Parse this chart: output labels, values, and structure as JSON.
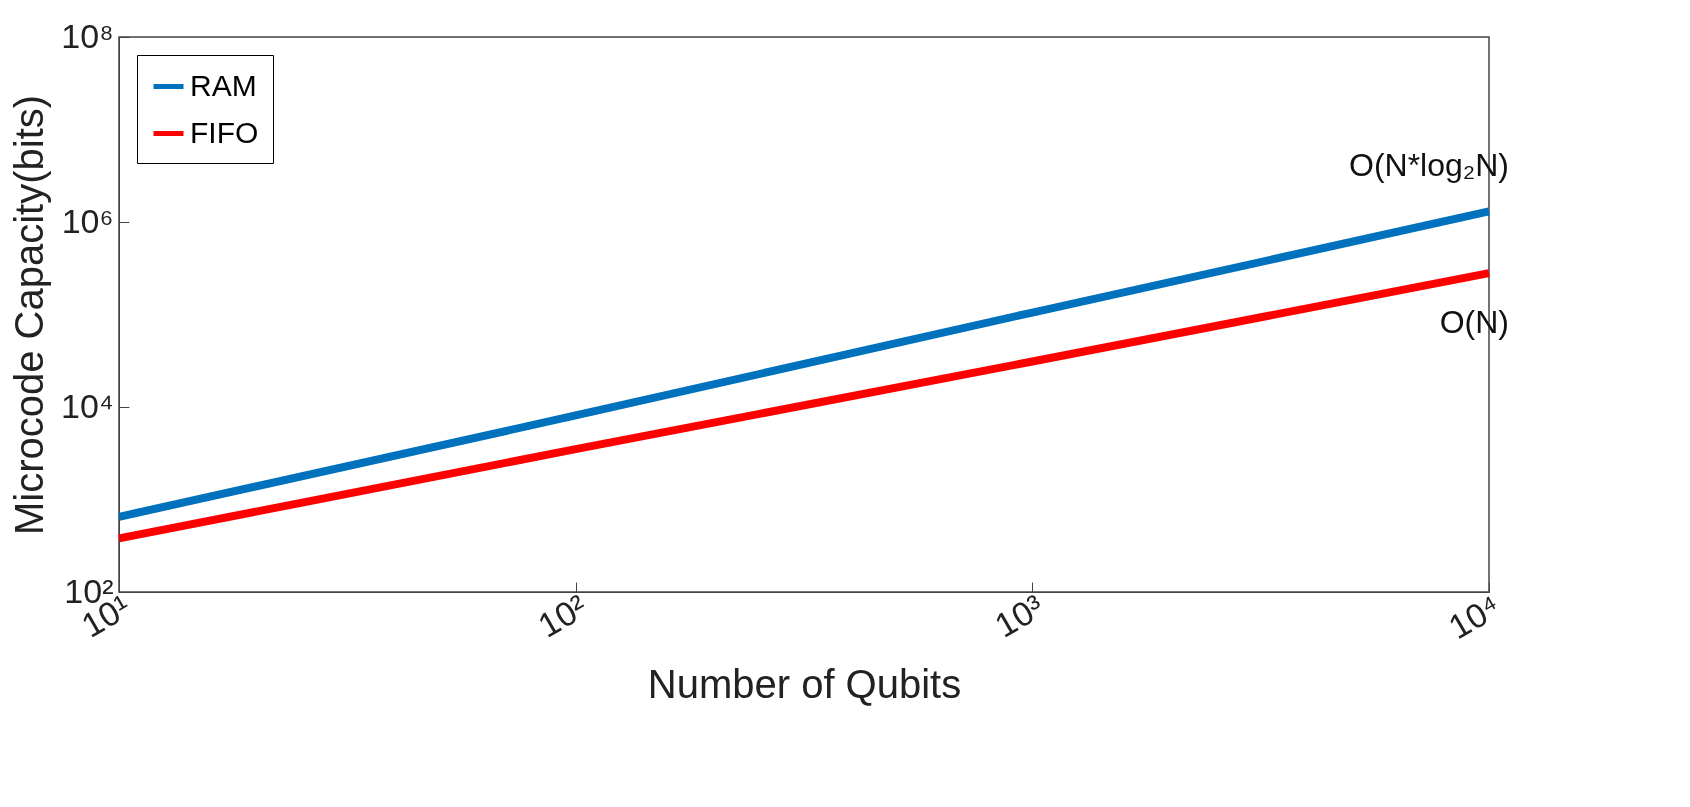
{
  "chart_data": {
    "type": "line",
    "xlabel": "Number of Qubits",
    "ylabel": "Microcode Capacity(bits)",
    "log": "xy",
    "grid": false,
    "legend": "top left",
    "line_style": "solid",
    "marker": "none",
    "xlim": [
      10,
      10000
    ],
    "ylim": [
      100,
      100000000
    ],
    "xticks": [
      {
        "value": 10,
        "label": "10¹"
      },
      {
        "value": 100,
        "label": "10²"
      },
      {
        "value": 1000,
        "label": "10³"
      },
      {
        "value": 10000,
        "label": "10⁴"
      }
    ],
    "yticks": [
      {
        "value": 100,
        "label": "10²"
      },
      {
        "value": 10000,
        "label": "10⁴"
      },
      {
        "value": 1000000,
        "label": "10⁶"
      },
      {
        "value": 100000000,
        "label": "10⁸"
      }
    ],
    "x": [
      10,
      100,
      1000,
      10000
    ],
    "series": [
      {
        "name": "RAM",
        "color": "#0072bd",
        "values": [
          650,
          8100,
          105000,
          1300000
        ]
      },
      {
        "name": "FIFO",
        "color": "#ff0000",
        "values": [
          380,
          3500,
          31000,
          280000
        ]
      }
    ],
    "annotations": [
      "O(N*log₂N)",
      "O(N)"
    ]
  }
}
